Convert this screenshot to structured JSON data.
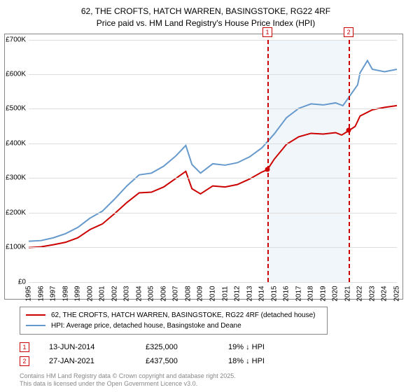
{
  "title_line1": "62, THE CROFTS, HATCH WARREN, BASINGSTOKE, RG22 4RF",
  "title_line2": "Price paid vs. HM Land Registry's House Price Index (HPI)",
  "chart": {
    "type": "line",
    "background_color": "#ffffff",
    "grid_color": "#dddddd",
    "border_color": "#888888",
    "ylim": [
      0,
      700000
    ],
    "ytick_step": 100000,
    "yticks": [
      "£0",
      "£100K",
      "£200K",
      "£300K",
      "£400K",
      "£500K",
      "£600K",
      "£700K"
    ],
    "x_years": [
      1995,
      1996,
      1997,
      1998,
      1999,
      2000,
      2001,
      2002,
      2003,
      2004,
      2005,
      2006,
      2007,
      2008,
      2009,
      2010,
      2011,
      2012,
      2013,
      2014,
      2015,
      2016,
      2017,
      2018,
      2019,
      2020,
      2021,
      2022,
      2023,
      2024,
      2025
    ],
    "shade_from_year": 2014.45,
    "shade_to_year": 2021.07,
    "shade_color": "#e8f0f8",
    "markers": [
      {
        "label": "1",
        "year": 2014.45,
        "y": 325000,
        "top_y": -18
      },
      {
        "label": "2",
        "year": 2021.07,
        "y": 437500,
        "top_y": -18
      }
    ],
    "series": [
      {
        "name": "price_paid",
        "color": "#cc0000",
        "width": 2,
        "points": [
          [
            1995,
            100000
          ],
          [
            1996,
            102000
          ],
          [
            1997,
            108000
          ],
          [
            1998,
            115000
          ],
          [
            1999,
            128000
          ],
          [
            2000,
            152000
          ],
          [
            2001,
            168000
          ],
          [
            2002,
            198000
          ],
          [
            2003,
            230000
          ],
          [
            2004,
            258000
          ],
          [
            2005,
            260000
          ],
          [
            2006,
            275000
          ],
          [
            2007,
            300000
          ],
          [
            2007.8,
            320000
          ],
          [
            2008.3,
            270000
          ],
          [
            2009,
            255000
          ],
          [
            2010,
            278000
          ],
          [
            2011,
            275000
          ],
          [
            2012,
            282000
          ],
          [
            2013,
            298000
          ],
          [
            2014,
            318000
          ],
          [
            2014.45,
            325000
          ],
          [
            2015,
            355000
          ],
          [
            2016,
            398000
          ],
          [
            2017,
            420000
          ],
          [
            2018,
            430000
          ],
          [
            2019,
            428000
          ],
          [
            2020,
            432000
          ],
          [
            2020.5,
            425000
          ],
          [
            2021.07,
            437500
          ],
          [
            2021.6,
            450000
          ],
          [
            2022,
            480000
          ],
          [
            2023,
            498000
          ],
          [
            2024,
            505000
          ],
          [
            2025,
            510000
          ]
        ]
      },
      {
        "name": "hpi",
        "color": "#6699cc",
        "width": 2,
        "points": [
          [
            1995,
            118000
          ],
          [
            1996,
            120000
          ],
          [
            1997,
            128000
          ],
          [
            1998,
            140000
          ],
          [
            1999,
            158000
          ],
          [
            2000,
            185000
          ],
          [
            2001,
            205000
          ],
          [
            2002,
            240000
          ],
          [
            2003,
            278000
          ],
          [
            2004,
            310000
          ],
          [
            2005,
            315000
          ],
          [
            2006,
            335000
          ],
          [
            2007,
            365000
          ],
          [
            2007.8,
            395000
          ],
          [
            2008.3,
            340000
          ],
          [
            2009,
            315000
          ],
          [
            2010,
            342000
          ],
          [
            2011,
            338000
          ],
          [
            2012,
            345000
          ],
          [
            2013,
            362000
          ],
          [
            2014,
            388000
          ],
          [
            2015,
            428000
          ],
          [
            2016,
            475000
          ],
          [
            2017,
            502000
          ],
          [
            2018,
            515000
          ],
          [
            2019,
            512000
          ],
          [
            2020,
            518000
          ],
          [
            2020.6,
            510000
          ],
          [
            2021,
            530000
          ],
          [
            2021.8,
            570000
          ],
          [
            2022,
            605000
          ],
          [
            2022.6,
            640000
          ],
          [
            2023,
            615000
          ],
          [
            2024,
            608000
          ],
          [
            2025,
            615000
          ]
        ]
      }
    ]
  },
  "legend": {
    "items": [
      {
        "color": "#cc0000",
        "label": "62, THE CROFTS, HATCH WARREN, BASINGSTOKE, RG22 4RF (detached house)"
      },
      {
        "color": "#6699cc",
        "label": "HPI: Average price, detached house, Basingstoke and Deane"
      }
    ]
  },
  "sales": [
    {
      "num": "1",
      "date": "13-JUN-2014",
      "price": "£325,000",
      "delta": "19% ↓ HPI"
    },
    {
      "num": "2",
      "date": "27-JAN-2021",
      "price": "£437,500",
      "delta": "18% ↓ HPI"
    }
  ],
  "footer_line1": "Contains HM Land Registry data © Crown copyright and database right 2025.",
  "footer_line2": "This data is licensed under the Open Government Licence v3.0."
}
